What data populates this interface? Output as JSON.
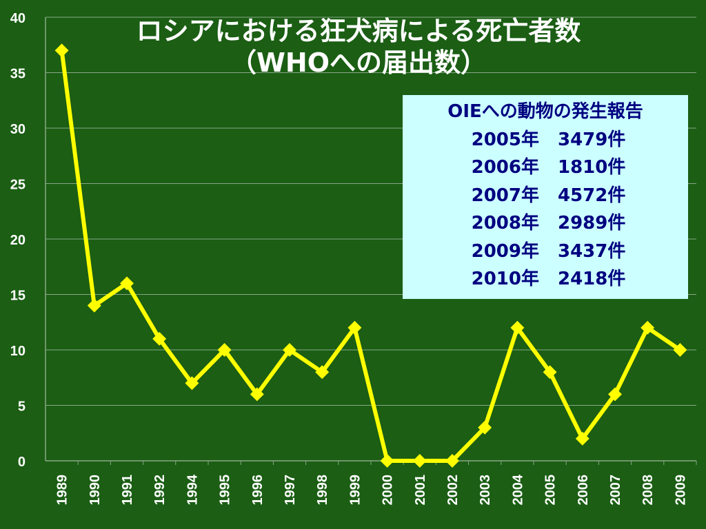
{
  "chart_data": {
    "type": "line",
    "title": "ロシアにおける狂犬病による死亡者数",
    "subtitle": "（WHOへの届出数）",
    "categories": [
      "1989",
      "1990",
      "1991",
      "1992",
      "1994",
      "1995",
      "1996",
      "1997",
      "1998",
      "1999",
      "2000",
      "2001",
      "2002",
      "2003",
      "2004",
      "2005",
      "2006",
      "2007",
      "2008",
      "2009"
    ],
    "series": [
      {
        "values": [
          37,
          14,
          16,
          11,
          7,
          10,
          6,
          10,
          8,
          12,
          0,
          0,
          0,
          3,
          12,
          8,
          2,
          6,
          12,
          10
        ]
      }
    ],
    "ylim": [
      0,
      40
    ],
    "yticks": [
      0,
      5,
      10,
      15,
      20,
      25,
      30,
      35,
      40
    ],
    "grid": true,
    "line_color": "#ffff00"
  },
  "infobox": {
    "heading": "OIEへの動物の発生報告",
    "rows": [
      {
        "year": "2005年",
        "count": "3479件"
      },
      {
        "year": "2006年",
        "count": "1810件"
      },
      {
        "year": "2007年",
        "count": "4572件"
      },
      {
        "year": "2008年",
        "count": "2989件"
      },
      {
        "year": "2009年",
        "count": "3437件"
      },
      {
        "year": "2010年",
        "count": "2418件"
      }
    ]
  },
  "colors": {
    "background": "#1b5e14",
    "line": "#ffff00",
    "grid": "#8aa888",
    "axis_text": "#ffffff",
    "infobox_bg": "#ccffff",
    "infobox_text": "#000080"
  }
}
